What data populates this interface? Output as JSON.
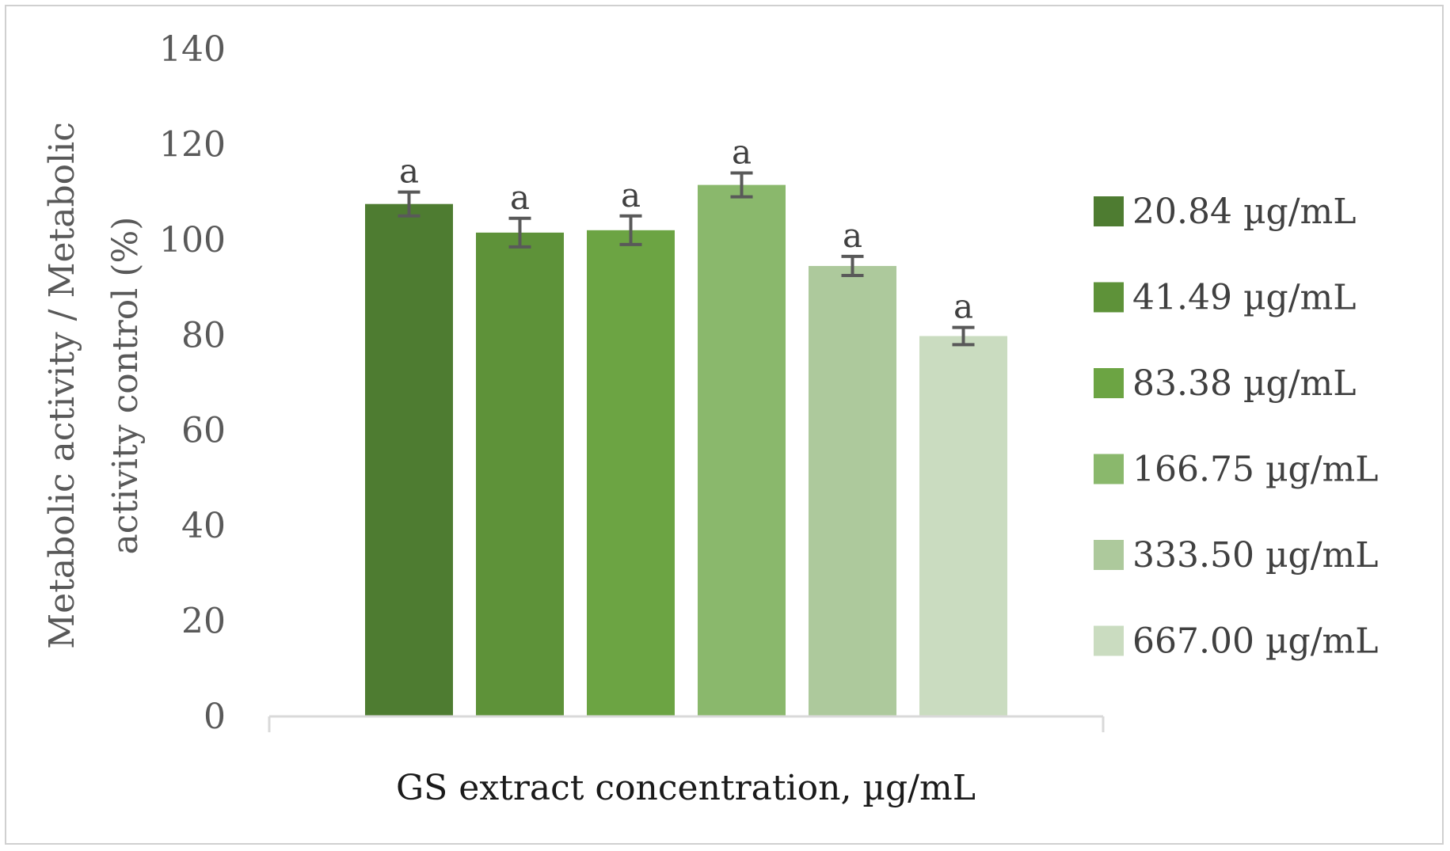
{
  "chart_data": {
    "type": "bar",
    "xlabel": "GS extract concentration, µg/mL",
    "ylabel_lines": [
      "Metabolic activity / Metabolic",
      "activity  control (%)"
    ],
    "ylim": [
      0,
      140
    ],
    "yticks": [
      0,
      20,
      40,
      60,
      80,
      100,
      120,
      140
    ],
    "grid": false,
    "legend_position": "right",
    "series": [
      {
        "name": "20.84 µg/mL",
        "value": 107.5,
        "error": 2.5,
        "label": "a",
        "color": "#4e7c31"
      },
      {
        "name": "41.49 µg/mL",
        "value": 101.5,
        "error": 3.0,
        "label": "a",
        "color": "#5e9239"
      },
      {
        "name": "83.38 µg/mL",
        "value": 102.0,
        "error": 3.0,
        "label": "a",
        "color": "#6ca443"
      },
      {
        "name": "166.75 µg/mL",
        "value": 111.5,
        "error": 2.5,
        "label": "a",
        "color": "#8ab86c"
      },
      {
        "name": "333.50 µg/mL",
        "value": 94.5,
        "error": 2.0,
        "label": "a",
        "color": "#adc99c"
      },
      {
        "name": "667.00 µg/mL",
        "value": 79.8,
        "error": 1.8,
        "label": "a",
        "color": "#cadcc0"
      }
    ]
  }
}
